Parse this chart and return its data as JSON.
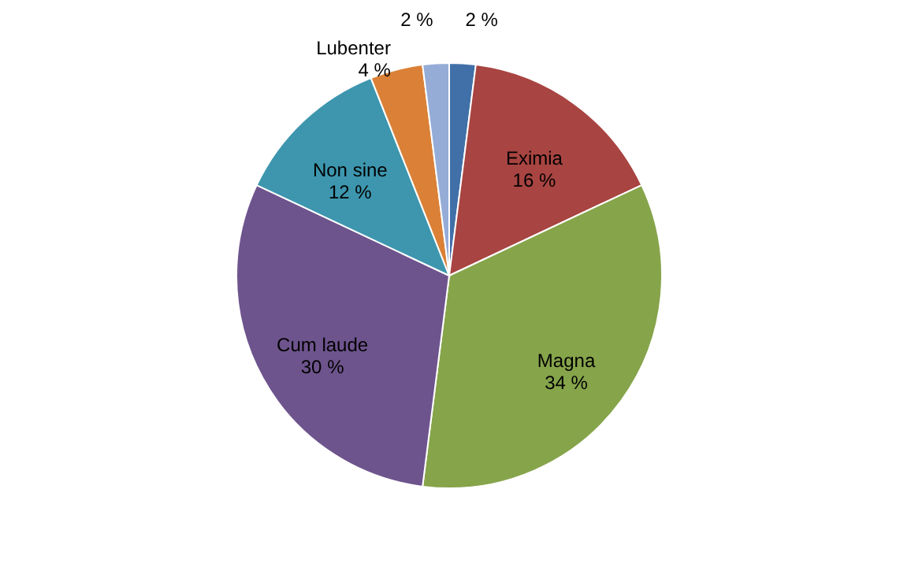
{
  "chart_data": {
    "type": "pie",
    "categories": [
      null,
      "Eximia",
      "Magna",
      "Cum laude",
      "Non sine",
      "Lubenter",
      null
    ],
    "values": [
      2,
      16,
      34,
      30,
      12,
      4,
      2
    ],
    "value_labels": [
      "2 %",
      "16 %",
      "34 %",
      "30 %",
      "12 %",
      "4 %",
      "2 %"
    ],
    "colors": [
      "#4170a8",
      "#a84441",
      "#86a44a",
      "#6e548d",
      "#3d96ae",
      "#da8137",
      "#95acd6"
    ],
    "legend": false
  }
}
